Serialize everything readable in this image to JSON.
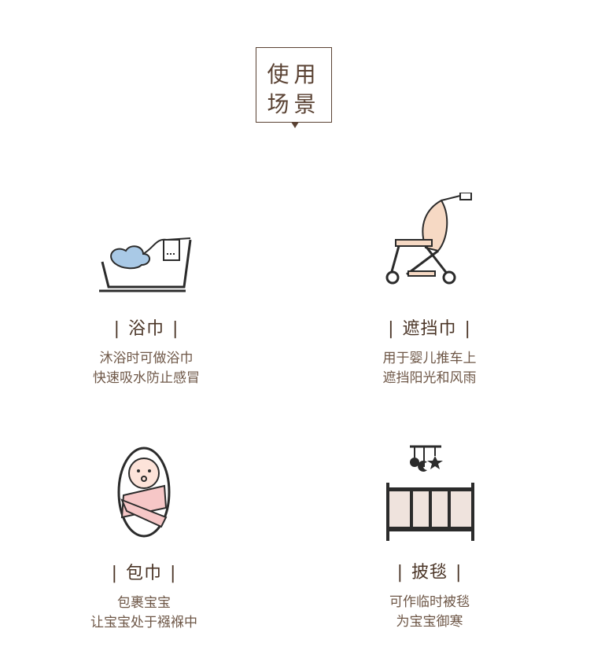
{
  "title": {
    "line1": "使用",
    "line2": "场景"
  },
  "items": [
    {
      "name": "浴巾",
      "desc1": "沐浴时可做浴巾",
      "desc2": "快速吸水防止感冒"
    },
    {
      "name": "遮挡巾",
      "desc1": "用于婴儿推车上",
      "desc2": "遮挡阳光和风雨"
    },
    {
      "name": "包巾",
      "desc1": "包裹宝宝",
      "desc2": "让宝宝处于襁褓中"
    },
    {
      "name": "披毯",
      "desc1": "可作临时被毯",
      "desc2": "为宝宝御寒"
    }
  ],
  "separator": "|",
  "icons": [
    "bathtub-icon",
    "stroller-icon",
    "swaddled-baby-icon",
    "crib-icon"
  ],
  "colors": {
    "title": "#5a4233",
    "text": "#4a3426",
    "accent_blue": "#a9c9e6",
    "accent_pink": "#f6c7c7",
    "accent_peach": "#f6d9c4"
  }
}
